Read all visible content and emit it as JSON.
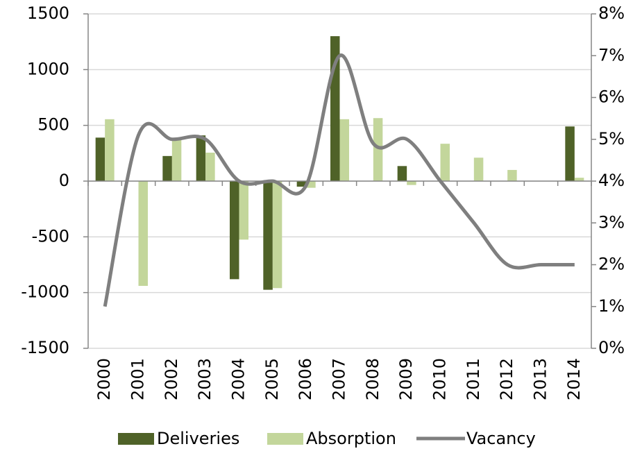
{
  "chart_data": {
    "type": "bar-line",
    "categories": [
      "2000",
      "2001",
      "2002",
      "2003",
      "2004",
      "2005",
      "2006",
      "2007",
      "2008",
      "2009",
      "2010",
      "2011",
      "2012",
      "2013",
      "2014"
    ],
    "series": [
      {
        "name": "Deliveries",
        "type": "bar",
        "color": "#4f6228",
        "values": [
          390,
          0,
          225,
          410,
          -880,
          -975,
          -50,
          1300,
          0,
          135,
          0,
          0,
          0,
          0,
          490
        ]
      },
      {
        "name": "Absorption",
        "type": "bar",
        "color": "#c3d69b",
        "values": [
          555,
          -940,
          370,
          255,
          -525,
          -960,
          -60,
          555,
          565,
          -35,
          335,
          210,
          100,
          0,
          30
        ]
      },
      {
        "name": "Vacancy",
        "type": "line",
        "axis": "y2",
        "color": "#7f7f7f",
        "values": [
          1,
          5.1,
          5,
          5,
          4,
          4,
          3.9,
          7,
          4.9,
          5,
          4,
          3,
          2,
          2,
          2
        ]
      }
    ],
    "ylim": [
      -1500,
      1500
    ],
    "yticks": [
      -1500,
      -1000,
      -500,
      0,
      500,
      1000,
      1500
    ],
    "y2lim": [
      0,
      8
    ],
    "y2ticks": [
      {
        "value": 0,
        "label": "0%"
      },
      {
        "value": 1,
        "label": "1%"
      },
      {
        "value": 2,
        "label": "2%"
      },
      {
        "value": 3,
        "label": "3%"
      },
      {
        "value": 4,
        "label": "4%"
      },
      {
        "value": 5,
        "label": "5%"
      },
      {
        "value": 6,
        "label": "6%"
      },
      {
        "value": 7,
        "label": "7%"
      },
      {
        "value": 8,
        "label": "8%"
      }
    ],
    "grid": true,
    "legend": "bottom"
  }
}
